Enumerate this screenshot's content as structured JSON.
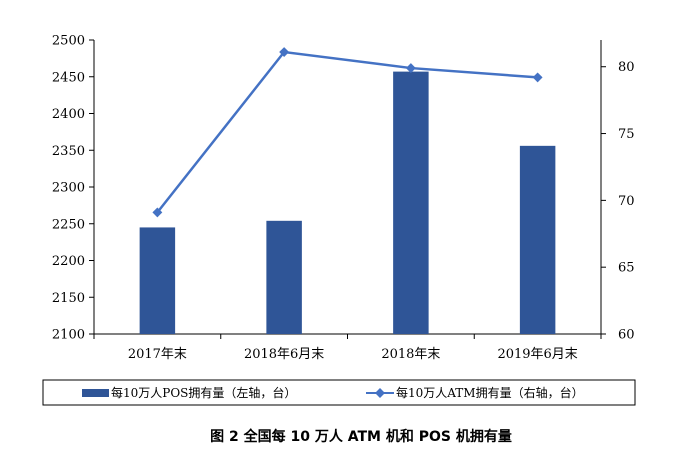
{
  "chart_data": {
    "type": "bar",
    "caption": "图 2 全国每 10 万人 ATM 机和 POS 机拥有量",
    "categories": [
      "2017年末",
      "2018年6月末",
      "2018年末",
      "2019年6月末"
    ],
    "series": [
      {
        "name": "每10万人POS拥有量（左轴，台）",
        "type": "bar",
        "axis": "left",
        "color": "#2F5597",
        "values": [
          2245,
          2254,
          2457,
          2356
        ]
      },
      {
        "name": "每10万人ATM拥有量（右轴，台）",
        "type": "line",
        "axis": "right",
        "color": "#4472C4",
        "values": [
          69.1,
          81.1,
          79.9,
          79.2
        ]
      }
    ],
    "ylim_left": [
      2100,
      2500
    ],
    "yticks_left": [
      "2100",
      "2150",
      "2200",
      "2250",
      "2300",
      "2350",
      "2400",
      "2450",
      "2500"
    ],
    "ylim_right": [
      60,
      82
    ],
    "yticks_right": [
      "60",
      "65",
      "70",
      "75",
      "80"
    ],
    "grid": false,
    "legend_position": "bottom"
  }
}
